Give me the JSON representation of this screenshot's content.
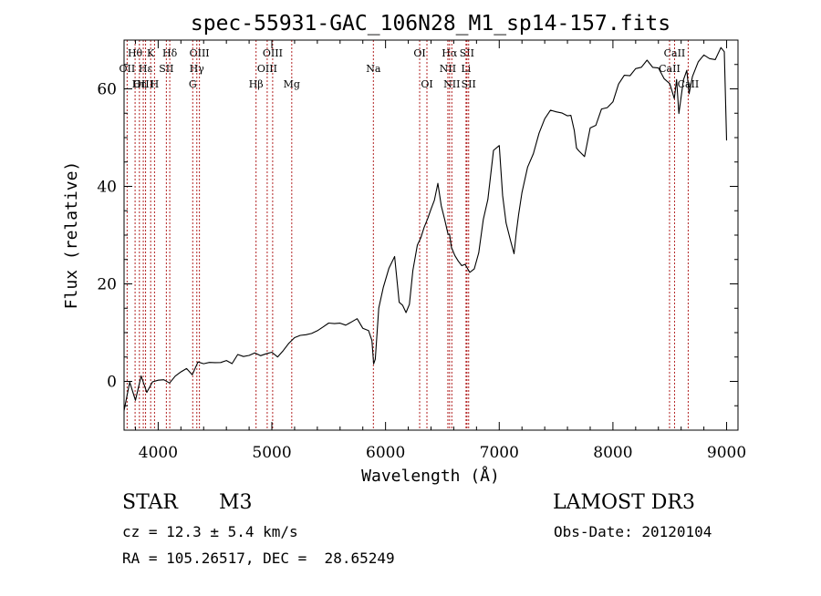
{
  "chart_data": {
    "type": "line",
    "title": "spec-55931-GAC_106N28_M1_sp14-157.fits",
    "xlabel": "Wavelength (Å)",
    "ylabel": "Flux (relative)",
    "xlim": [
      3700,
      9100
    ],
    "ylim": [
      -10,
      70
    ],
    "x_ticks": [
      4000,
      5000,
      6000,
      7000,
      8000,
      9000
    ],
    "x_tick_labels": [
      "4000",
      "5000",
      "6000",
      "7000",
      "8000",
      "9000"
    ],
    "y_ticks": [
      0,
      20,
      40,
      60
    ],
    "y_tick_labels": [
      "0",
      "20",
      "40",
      "60"
    ],
    "line_color": "#000000",
    "marker_color": "#b22222",
    "spectrum": {
      "x": [
        3700,
        3750,
        3800,
        3850,
        3900,
        3950,
        4000,
        4050,
        4100,
        4150,
        4200,
        4250,
        4300,
        4350,
        4400,
        4450,
        4500,
        4550,
        4600,
        4650,
        4700,
        4750,
        4800,
        4850,
        4900,
        4950,
        5000,
        5050,
        5100,
        5150,
        5200,
        5250,
        5300,
        5350,
        5400,
        5450,
        5500,
        5550,
        5600,
        5650,
        5700,
        5750,
        5800,
        5850,
        5880,
        5895,
        5910,
        5940,
        5980,
        6030,
        6080,
        6120,
        6150,
        6180,
        6210,
        6240,
        6280,
        6310,
        6340,
        6370,
        6400,
        6430,
        6460,
        6490,
        6520,
        6550,
        6563,
        6580,
        6610,
        6640,
        6670,
        6700,
        6740,
        6780,
        6820,
        6860,
        6900,
        6950,
        7000,
        7030,
        7060,
        7100,
        7130,
        7150,
        7170,
        7200,
        7250,
        7300,
        7350,
        7400,
        7450,
        7500,
        7550,
        7600,
        7630,
        7660,
        7680,
        7700,
        7750,
        7800,
        7850,
        7900,
        7950,
        8000,
        8050,
        8100,
        8150,
        8200,
        8250,
        8300,
        8350,
        8400,
        8450,
        8500,
        8540,
        8560,
        8580,
        8620,
        8650,
        8670,
        8700,
        8750,
        8800,
        8850,
        8900,
        8950,
        8980,
        9000
      ],
      "y": [
        -5,
        -1,
        -3,
        1,
        -2,
        0,
        0,
        1,
        0,
        1,
        1,
        2,
        2,
        3,
        3,
        4,
        3,
        4,
        4,
        4,
        5,
        5,
        5,
        6,
        6,
        6,
        6,
        6,
        7,
        8,
        8,
        9,
        10,
        10,
        11,
        11,
        11,
        11,
        12,
        11,
        12,
        12,
        11,
        11,
        8,
        3,
        5,
        15,
        20,
        24,
        26,
        17,
        15,
        14,
        16,
        22,
        28,
        30,
        32,
        34,
        36,
        38,
        40,
        37,
        34,
        31,
        30,
        28,
        26,
        25,
        24,
        24,
        23,
        24,
        27,
        33,
        38,
        47,
        49,
        39,
        32,
        29,
        27,
        31,
        35,
        39,
        44,
        47,
        51,
        53,
        55,
        56,
        55,
        54,
        54,
        51,
        47,
        48,
        47,
        52,
        53,
        55,
        57,
        58,
        61,
        62,
        63,
        64,
        64,
        65,
        65,
        64,
        63,
        62,
        58,
        62,
        55,
        61,
        64,
        58,
        63,
        65,
        66,
        67,
        67,
        68,
        68,
        50
      ]
    },
    "lines": [
      {
        "label": "Hθ",
        "wl": 3797,
        "row": 1
      },
      {
        "label": "OII",
        "wl": 3727,
        "row": 2
      },
      {
        "label": "OIII",
        "wl": 3869,
        "row": 3
      },
      {
        "label": "Hη",
        "wl": 3835,
        "row": 3
      },
      {
        "label": "K",
        "wl": 3934,
        "row": 1
      },
      {
        "label": "H",
        "wl": 3968,
        "row": 3
      },
      {
        "label": "Hε",
        "wl": 3889,
        "row": 2
      },
      {
        "label": "SII",
        "wl": 4072,
        "row": 2
      },
      {
        "label": "Hδ",
        "wl": 4102,
        "row": 1
      },
      {
        "label": "OIII",
        "wl": 4363,
        "row": 1
      },
      {
        "label": "Hγ",
        "wl": 4340,
        "row": 2
      },
      {
        "label": "G",
        "wl": 4304,
        "row": 3
      },
      {
        "label": "Hβ",
        "wl": 4861,
        "row": 3
      },
      {
        "label": "OIII",
        "wl": 5007,
        "row": 1
      },
      {
        "label": "OIII",
        "wl": 4959,
        "row": 2
      },
      {
        "label": "Mg",
        "wl": 5175,
        "row": 3
      },
      {
        "label": "Na",
        "wl": 5893,
        "row": 2
      },
      {
        "label": "OI",
        "wl": 6300,
        "row": 1
      },
      {
        "label": "OI",
        "wl": 6364,
        "row": 3
      },
      {
        "label": "Hα",
        "wl": 6563,
        "row": 1
      },
      {
        "label": "NII",
        "wl": 6548,
        "row": 2
      },
      {
        "label": "NII",
        "wl": 6583,
        "row": 3
      },
      {
        "label": "SII",
        "wl": 6716,
        "row": 1
      },
      {
        "label": "Li",
        "wl": 6708,
        "row": 2
      },
      {
        "label": "SII",
        "wl": 6731,
        "row": 3
      },
      {
        "label": "CaII",
        "wl": 8542,
        "row": 1
      },
      {
        "label": "CaII",
        "wl": 8498,
        "row": 2
      },
      {
        "label": "CaII",
        "wl": 8662,
        "row": 3
      }
    ]
  },
  "info": {
    "object_class": "STAR",
    "subclass": "M3",
    "survey": "LAMOST DR3",
    "redshift": "cz = 12.3 ± 5.4 km/s",
    "obs_date": "Obs-Date: 20120104",
    "coords": "RA = 105.26517, DEC =  28.65249"
  }
}
